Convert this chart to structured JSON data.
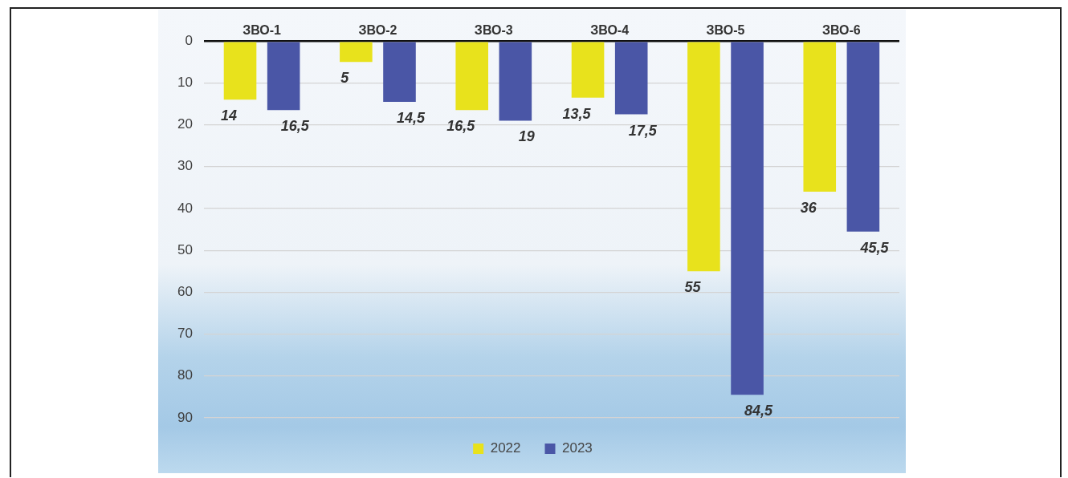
{
  "chart_data": {
    "type": "bar",
    "categories": [
      "ЗВО-1",
      "ЗВО-2",
      "ЗВО-3",
      "ЗВО-4",
      "ЗВО-5",
      "ЗВО-6"
    ],
    "series": [
      {
        "name": "2022",
        "color": "#e8e21c",
        "values": [
          14,
          5,
          16.5,
          13.5,
          55,
          36
        ],
        "value_labels": [
          "14",
          "5",
          "16,5",
          "13,5",
          "55",
          "36"
        ]
      },
      {
        "name": "2023",
        "color": "#4a56a6",
        "values": [
          16.5,
          14.5,
          19,
          17.5,
          84.5,
          45.5
        ],
        "value_labels": [
          "16,5",
          "14,5",
          "19",
          "17,5",
          "84,5",
          "45,5"
        ]
      }
    ],
    "ylim": [
      90,
      0
    ],
    "yticks": [
      0,
      10,
      20,
      30,
      40,
      50,
      60,
      70,
      80,
      90
    ],
    "grid": "y",
    "legend": "bottom"
  }
}
